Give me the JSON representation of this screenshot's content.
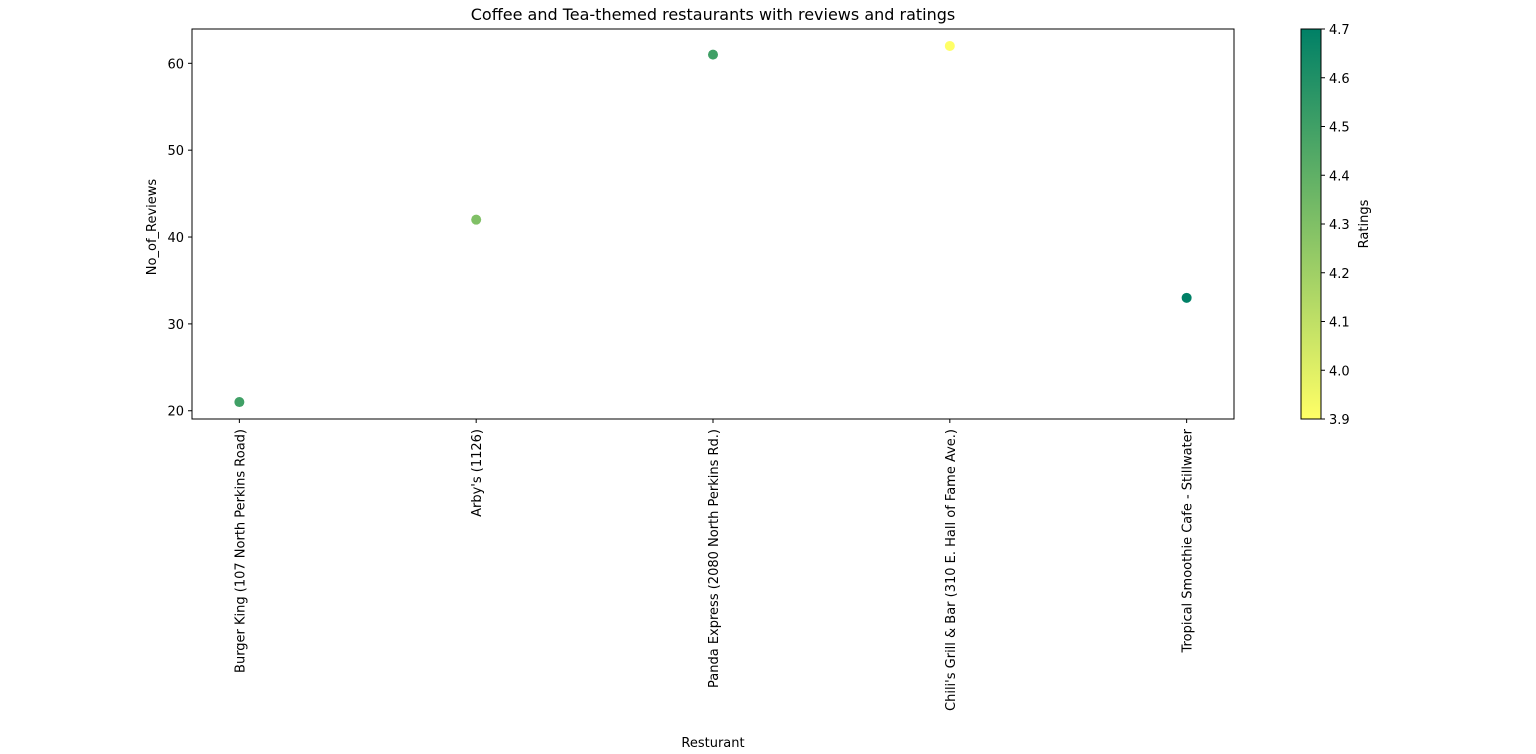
{
  "chart_data": {
    "type": "scatter",
    "title": "Coffee and Tea-themed restaurants with reviews and ratings",
    "xlabel": "Resturant",
    "ylabel": "No_of_Reviews",
    "categories": [
      "Burger King (107 North Perkins Road)",
      "Arby's (1126)",
      "Panda Express (2080 North Perkins Rd.)",
      "Chili's Grill & Bar (310 E. Hall of Fame Ave.)",
      "Tropical Smoothie Cafe - Stillwater"
    ],
    "values": [
      21,
      42,
      61,
      62,
      33
    ],
    "ratings": [
      4.5,
      4.3,
      4.5,
      3.9,
      4.7
    ],
    "ylim": [
      19.05,
      63.95
    ],
    "yticks": [
      20,
      30,
      40,
      50,
      60
    ],
    "grid": false,
    "colorbar": {
      "label": "Ratings",
      "range": [
        3.9,
        4.7
      ],
      "ticks": [
        "3.9",
        "4.0",
        "4.1",
        "4.2",
        "4.3",
        "4.4",
        "4.5",
        "4.6",
        "4.7"
      ],
      "colormap": "summer_r",
      "low_color": "#ffff66",
      "high_color": "#008066"
    }
  }
}
